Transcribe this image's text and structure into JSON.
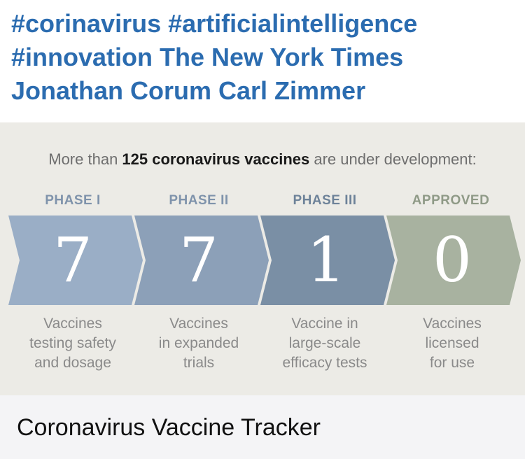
{
  "tweet": {
    "hashtags": [
      "#corinavirus",
      "#artificialintelligence",
      "#innovation"
    ],
    "mentions_line": "The New York Times",
    "authors_line": "Jonathan Corum Carl Zimmer",
    "link_color": "#2b6cb0"
  },
  "card": {
    "headline": {
      "prefix": "More than ",
      "highlight": "125 coronavirus vaccines",
      "suffix": " are under development:"
    },
    "phases": [
      {
        "label": "PHASE I",
        "count": "7",
        "description": [
          "Vaccines",
          "testing safety",
          "and dosage"
        ],
        "color": "#9aaec6",
        "label_color": "#7f93ab"
      },
      {
        "label": "PHASE II",
        "count": "7",
        "description": [
          "Vaccines",
          "in expanded",
          "trials"
        ],
        "color": "#8ca0b8",
        "label_color": "#7f93ab"
      },
      {
        "label": "PHASE III",
        "count": "1",
        "description": [
          "Vaccine in",
          "large-scale",
          "efficacy tests"
        ],
        "color": "#7a8fa5",
        "label_color": "#6d8299"
      },
      {
        "label": "APPROVED",
        "count": "0",
        "description": [
          "Vaccines",
          "licensed",
          "for use"
        ],
        "color": "#a8b2a0",
        "label_color": "#8f9a87"
      }
    ],
    "footer_title": "Coronavirus Vaccine Tracker"
  }
}
